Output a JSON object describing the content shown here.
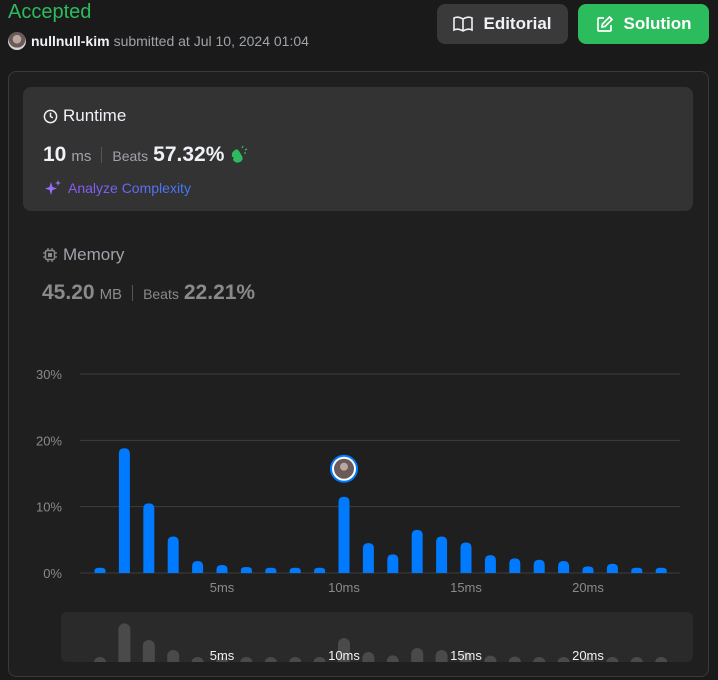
{
  "submission": {
    "status": "Accepted",
    "username": "nullnull-kim",
    "submitted_text": "submitted at Jul 10, 2024 01:04"
  },
  "buttons": {
    "editorial": "Editorial",
    "solution": "Solution"
  },
  "runtime": {
    "title": "Runtime",
    "value": "10",
    "unit": "ms",
    "beats_label": "Beats",
    "beats_value": "57.32%",
    "analyze_label": "Analyze Complexity"
  },
  "memory": {
    "title": "Memory",
    "value": "45.20",
    "unit": "MB",
    "beats_label": "Beats",
    "beats_value": "22.21%"
  },
  "colors": {
    "accepted_green": "#2cbb5d",
    "bar_blue": "#007aff",
    "panel_bg": "#333333",
    "page_bg": "#1a1a1a"
  },
  "chart_data": {
    "type": "bar",
    "x": [
      0,
      1,
      2,
      3,
      4,
      5,
      6,
      7,
      8,
      9,
      10,
      11,
      12,
      13,
      14,
      15,
      16,
      17,
      18,
      19,
      20,
      21,
      22,
      23
    ],
    "values": [
      0.8,
      18.8,
      10.5,
      5.5,
      1.8,
      1.2,
      0.9,
      0.8,
      0.8,
      0.8,
      11.5,
      4.5,
      2.8,
      6.5,
      5.5,
      4.6,
      2.7,
      2.2,
      2.0,
      1.8,
      1.0,
      1.4,
      0.8,
      0.8
    ],
    "highlight_x": 10,
    "xticks": [
      5,
      10,
      15,
      20
    ],
    "xtick_labels": [
      "5ms",
      "10ms",
      "15ms",
      "20ms"
    ],
    "yticks": [
      0,
      10,
      20,
      30
    ],
    "ytick_labels": [
      "0%",
      "10%",
      "20%",
      "30%"
    ],
    "ylim": [
      0,
      30
    ],
    "grid": true
  }
}
